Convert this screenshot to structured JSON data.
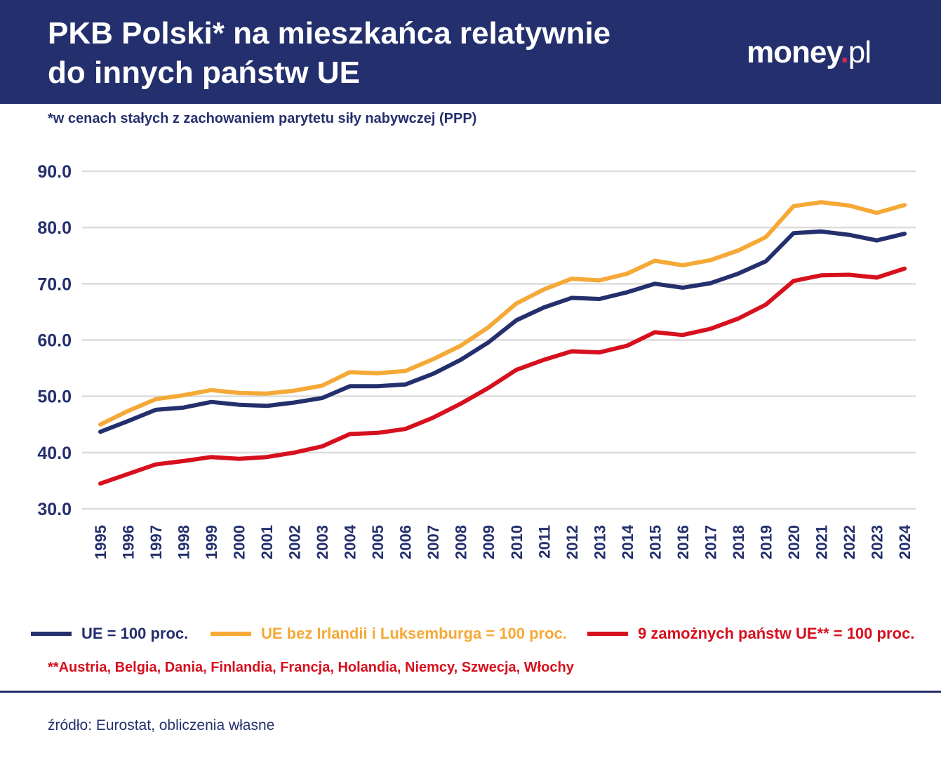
{
  "header": {
    "title_line1": "PKB Polski* na mieszkańca relatywnie",
    "title_line2": "do innych państw UE",
    "logo_main": "money",
    "logo_dot": ".",
    "logo_suffix": "pl"
  },
  "subtitle": "*w cenach stałych z zachowaniem parytetu siły nabywczej (PPP)",
  "note": "**Austria, Belgia, Dania, Finlandia, Francja, Holandia, Niemcy, Szwecja, Włochy",
  "source": "źródło: Eurostat, obliczenia własne",
  "colors": {
    "header_bg": "#24306d",
    "series_eu": "#24306d",
    "series_eu_ex": "#f5a936",
    "series_rich9": "#d7101e",
    "grid": "#dcdcdc"
  },
  "chart_data": {
    "type": "line",
    "x": [
      "1995",
      "1996",
      "1997",
      "1998",
      "1999",
      "2000",
      "2001",
      "2002",
      "2003",
      "2004",
      "2005",
      "2006",
      "2007",
      "2008",
      "2009",
      "2010",
      "2011",
      "2012",
      "2013",
      "2014",
      "2015",
      "2016",
      "2017",
      "2018",
      "2019",
      "2020",
      "2021",
      "2022",
      "2023",
      "2024"
    ],
    "ylim": [
      30,
      90
    ],
    "yticks": [
      "90.0",
      "80.0",
      "70.0",
      "60.0",
      "50.0",
      "40.0",
      "30.0"
    ],
    "ytick_values": [
      90,
      80,
      70,
      60,
      50,
      40,
      30
    ],
    "grid": true,
    "legend_position": "bottom",
    "series": [
      {
        "name": "UE = 100 proc.",
        "color": "#24306d",
        "values": [
          43.7,
          45.6,
          47.6,
          48.0,
          49.0,
          48.5,
          48.3,
          48.9,
          49.7,
          51.8,
          51.8,
          52.1,
          54.0,
          56.5,
          59.6,
          63.5,
          65.8,
          67.5,
          67.3,
          68.5,
          70.0,
          69.3,
          70.1,
          71.8,
          74.0,
          79.0,
          79.3,
          78.7,
          77.7,
          78.9
        ]
      },
      {
        "name": "UE bez Irlandii i Luksemburga = 100 proc.",
        "color": "#f5a936",
        "values": [
          45.0,
          47.4,
          49.5,
          50.2,
          51.1,
          50.6,
          50.5,
          51.0,
          51.9,
          54.3,
          54.1,
          54.5,
          56.6,
          59.0,
          62.3,
          66.5,
          69.0,
          70.9,
          70.6,
          71.8,
          74.1,
          73.3,
          74.2,
          75.9,
          78.3,
          83.8,
          84.5,
          83.9,
          82.6,
          84.0
        ]
      },
      {
        "name": "9 zamożnych państw UE** = 100 proc.",
        "color": "#d7101e",
        "values": [
          34.5,
          36.2,
          37.9,
          38.5,
          39.2,
          38.9,
          39.2,
          40.0,
          41.1,
          43.3,
          43.5,
          44.2,
          46.2,
          48.7,
          51.5,
          54.7,
          56.5,
          58.0,
          57.8,
          59.0,
          61.4,
          60.9,
          62.0,
          63.8,
          66.3,
          70.5,
          71.5,
          71.6,
          71.1,
          72.7
        ]
      }
    ]
  }
}
